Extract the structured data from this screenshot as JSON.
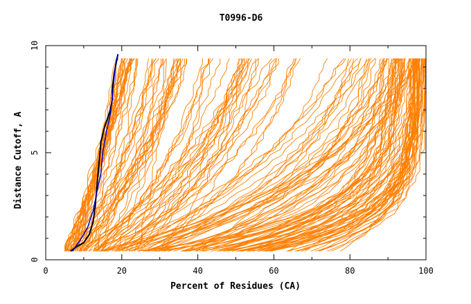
{
  "chart_data": {
    "type": "line",
    "title": "T0996-D6",
    "xlabel": "Percent of Residues (CA)",
    "ylabel": "Distance Cutoff, A",
    "xlim": [
      0,
      100
    ],
    "ylim": [
      0,
      10
    ],
    "x_ticks": [
      0,
      20,
      40,
      60,
      80,
      100
    ],
    "y_ticks": [
      0,
      5,
      10
    ],
    "grid": false,
    "legend": "none",
    "colors": {
      "models": "#ff7f00",
      "highlight_black": "#000000",
      "highlight_blue": "#0000cc",
      "axes": "#000000"
    },
    "series": [
      {
        "color": "#000000",
        "width": 2,
        "points": [
          [
            6.5,
            0.4
          ],
          [
            8,
            0.6
          ],
          [
            10,
            0.8
          ],
          [
            11.5,
            1.2
          ],
          [
            12.5,
            1.8
          ],
          [
            13,
            2.5
          ],
          [
            13.5,
            3.5
          ],
          [
            14,
            4.5
          ],
          [
            14.5,
            5.5
          ],
          [
            15.5,
            6.2
          ],
          [
            17,
            7.0
          ],
          [
            17.5,
            7.5
          ],
          [
            17.5,
            8.0
          ],
          [
            18,
            8.7
          ],
          [
            19,
            9.6
          ]
        ]
      },
      {
        "color": "#0000cc",
        "width": 1.5,
        "points": [
          [
            7,
            0.4
          ],
          [
            9,
            0.9
          ],
          [
            11,
            1.5
          ],
          [
            12.5,
            2.3
          ],
          [
            13.5,
            3.2
          ],
          [
            14.5,
            4.0
          ],
          [
            15,
            5.0
          ],
          [
            16,
            6.0
          ],
          [
            17,
            6.8
          ],
          [
            17.5,
            7.5
          ],
          [
            18,
            8.5
          ],
          [
            18.5,
            9.3
          ],
          [
            19,
            9.6
          ]
        ]
      }
    ],
    "model_envelopes": [
      {
        "n": 22,
        "x0": [
          4.5,
          8
        ],
        "x1": [
          18.5,
          24
        ],
        "shape": 0.55
      },
      {
        "n": 24,
        "x0": [
          6,
          14
        ],
        "x1": [
          22,
          38
        ],
        "shape": 0.9
      },
      {
        "n": 22,
        "x0": [
          8,
          25
        ],
        "x1": [
          30,
          62
        ],
        "shape": 1.2
      },
      {
        "n": 20,
        "x0": [
          10,
          30
        ],
        "x1": [
          50,
          86
        ],
        "shape": 1.6
      },
      {
        "n": 26,
        "x0": [
          14,
          40
        ],
        "x1": [
          80,
          100
        ],
        "shape": 2.2
      },
      {
        "n": 40,
        "x0": [
          22,
          68
        ],
        "x1": [
          88,
          100
        ],
        "shape": 4.5
      },
      {
        "n": 30,
        "x0": [
          36,
          82
        ],
        "x1": [
          95,
          100
        ],
        "shape": 6.0
      }
    ]
  }
}
